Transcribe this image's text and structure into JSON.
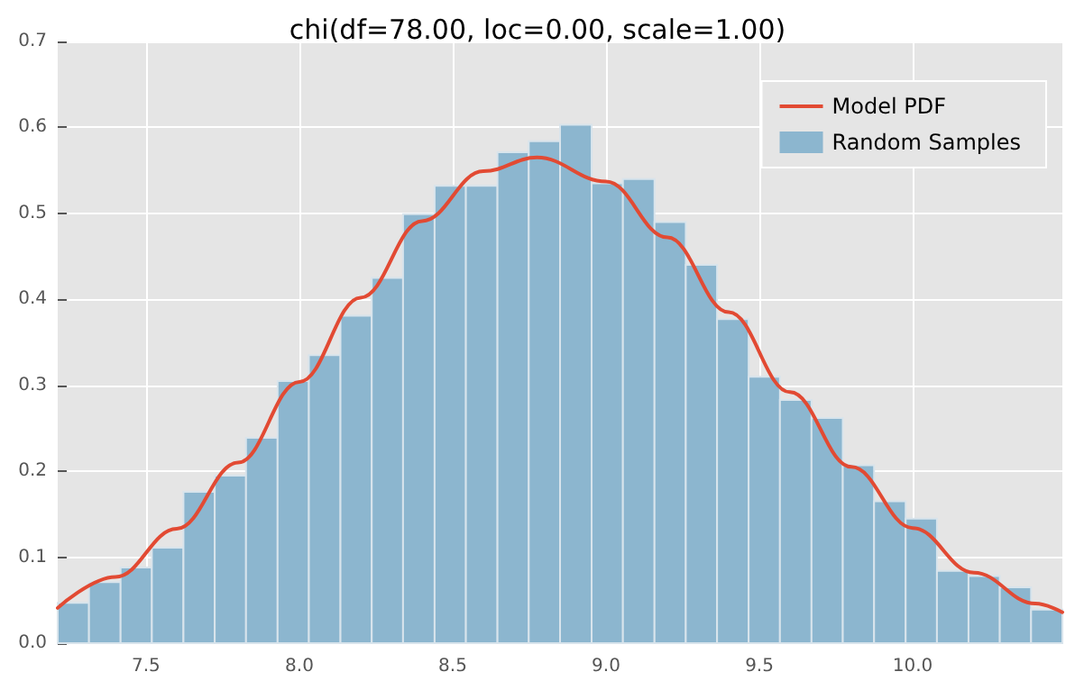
{
  "chart_data": {
    "type": "histogram",
    "title": "chi(df=78.00, loc=0.00, scale=1.00)",
    "series": [
      {
        "name": "Random Samples",
        "color": "#8cb6cf",
        "bins": [
          7.212,
          7.314,
          7.417,
          7.519,
          7.622,
          7.724,
          7.826,
          7.929,
          8.031,
          8.134,
          8.236,
          8.338,
          8.441,
          8.543,
          8.646,
          8.748,
          8.85,
          8.953,
          9.055,
          9.158,
          9.26,
          9.362,
          9.465,
          9.567,
          9.67,
          9.772,
          9.874,
          9.977,
          10.079,
          10.182,
          10.284,
          10.386,
          10.488
        ],
        "values": [
          0.047,
          0.071,
          0.088,
          0.111,
          0.176,
          0.195,
          0.239,
          0.305,
          0.335,
          0.381,
          0.425,
          0.499,
          0.532,
          0.532,
          0.571,
          0.584,
          0.603,
          0.535,
          0.54,
          0.49,
          0.44,
          0.377,
          0.31,
          0.283,
          0.262,
          0.207,
          0.165,
          0.145,
          0.084,
          0.078,
          0.065,
          0.039
        ]
      },
      {
        "name": "Model PDF",
        "type": "line",
        "color": "#e24a33",
        "x": [
          7.212,
          7.4,
          7.6,
          7.8,
          8.0,
          8.2,
          8.4,
          8.6,
          8.775,
          9.0,
          9.2,
          9.4,
          9.6,
          9.8,
          10.0,
          10.2,
          10.4,
          10.488
        ],
        "values": [
          0.041,
          0.077,
          0.133,
          0.21,
          0.304,
          0.402,
          0.491,
          0.549,
          0.565,
          0.537,
          0.472,
          0.385,
          0.292,
          0.205,
          0.134,
          0.082,
          0.046,
          0.036
        ]
      }
    ],
    "xlim": [
      7.212,
      10.488
    ],
    "xticks": [
      7.5,
      {
        "value": 8.0,
        "label": "8.0"
      },
      8.5,
      {
        "value": 9.0,
        "label": "9.0"
      },
      9.5,
      {
        "value": 10.0,
        "label": "10.0"
      }
    ],
    "ylim": [
      0,
      0.7
    ],
    "yticks": [
      {
        "value": 0,
        "label": "0.0"
      },
      0.1,
      0.2,
      0.3,
      0.4,
      0.5,
      0.6,
      0.7
    ],
    "grid": true,
    "legend": "top right",
    "line_style": "solid",
    "marker": "none"
  }
}
